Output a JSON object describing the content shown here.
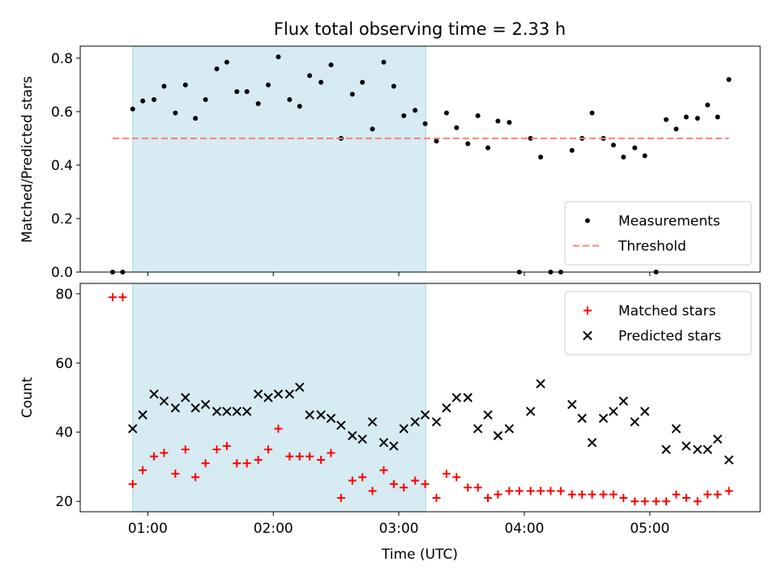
{
  "chart_data": {
    "title": "Flux total observing time = 2.33 h",
    "x_axis": {
      "label": "Time (UTC)",
      "unit": "hours UTC",
      "range": [
        0.462,
        5.879
      ],
      "ticks": [
        1,
        2,
        3,
        4,
        5
      ],
      "tick_labels": [
        "01:00",
        "02:00",
        "03:00",
        "04:00",
        "05:00"
      ]
    },
    "shaded_interval": {
      "start": 0.88,
      "end": 3.215,
      "color": "#add8e6"
    },
    "panels": [
      {
        "type": "scatter",
        "ylabel": "Matched/Predicted stars",
        "ylim": [
          0,
          0.845
        ],
        "yticks": [
          0.0,
          0.2,
          0.4,
          0.6,
          0.8
        ],
        "ytick_labels": [
          "0.0",
          "0.2",
          "0.4",
          "0.6",
          "0.8"
        ],
        "legend_position": "lower right",
        "series": [
          {
            "name": "Measurements",
            "marker": "dot",
            "color": "#000000",
            "x": [
              0.72,
              0.8,
              0.88,
              0.96,
              1.05,
              1.13,
              1.22,
              1.3,
              1.38,
              1.46,
              1.55,
              1.63,
              1.71,
              1.79,
              1.88,
              1.96,
              2.04,
              2.13,
              2.21,
              2.29,
              2.38,
              2.46,
              2.54,
              2.63,
              2.71,
              2.79,
              2.88,
              2.96,
              3.04,
              3.13,
              3.21,
              3.3,
              3.38,
              3.46,
              3.55,
              3.63,
              3.71,
              3.79,
              3.88,
              3.96,
              4.05,
              4.13,
              4.21,
              4.29,
              4.38,
              4.46,
              4.54,
              4.63,
              4.71,
              4.79,
              4.88,
              4.96,
              5.05,
              5.13,
              5.21,
              5.29,
              5.38,
              5.46,
              5.54,
              5.63
            ],
            "y": [
              0.0,
              0.0,
              0.61,
              0.64,
              0.645,
              0.695,
              0.595,
              0.7,
              0.575,
              0.645,
              0.76,
              0.785,
              0.675,
              0.675,
              0.63,
              0.7,
              0.805,
              0.645,
              0.62,
              0.735,
              0.71,
              0.775,
              0.5,
              0.665,
              0.71,
              0.535,
              0.785,
              0.695,
              0.585,
              0.605,
              0.555,
              0.49,
              0.595,
              0.54,
              0.48,
              0.585,
              0.465,
              0.565,
              0.56,
              0.0,
              0.5,
              0.43,
              0.0,
              0.0,
              0.455,
              0.5,
              0.595,
              0.5,
              0.475,
              0.43,
              0.465,
              0.435,
              0.0,
              0.57,
              0.535,
              0.58,
              0.575,
              0.625,
              0.58,
              0.72
            ]
          },
          {
            "name": "Threshold",
            "style": "dashed",
            "color": "#ff7f7f",
            "x": [
              0.72,
              5.63
            ],
            "y": [
              0.5,
              0.5
            ]
          }
        ]
      },
      {
        "type": "scatter",
        "ylabel": "Count",
        "ylim": [
          17,
          83
        ],
        "yticks": [
          20,
          40,
          60,
          80
        ],
        "ytick_labels": [
          "20",
          "40",
          "60",
          "80"
        ],
        "legend_position": "upper right",
        "series": [
          {
            "name": "Matched stars",
            "marker": "plus",
            "color": "#ff0000",
            "x": [
              0.72,
              0.8,
              0.88,
              0.96,
              1.05,
              1.13,
              1.22,
              1.3,
              1.38,
              1.46,
              1.55,
              1.63,
              1.71,
              1.79,
              1.88,
              1.96,
              2.04,
              2.13,
              2.21,
              2.29,
              2.38,
              2.46,
              2.54,
              2.63,
              2.71,
              2.79,
              2.88,
              2.96,
              3.04,
              3.13,
              3.21,
              3.3,
              3.38,
              3.46,
              3.55,
              3.63,
              3.71,
              3.79,
              3.88,
              3.96,
              4.05,
              4.13,
              4.21,
              4.29,
              4.38,
              4.46,
              4.54,
              4.63,
              4.71,
              4.79,
              4.88,
              4.96,
              5.05,
              5.13,
              5.21,
              5.29,
              5.38,
              5.46,
              5.54,
              5.63
            ],
            "y": [
              79,
              79,
              25,
              29,
              33,
              34,
              28,
              35,
              27,
              31,
              35,
              36,
              31,
              31,
              32,
              35,
              41,
              33,
              33,
              33,
              32,
              34,
              21,
              26,
              27,
              23,
              29,
              25,
              24,
              26,
              25,
              21,
              28,
              27,
              24,
              24,
              21,
              22,
              23,
              23,
              23,
              23,
              23,
              23,
              22,
              22,
              22,
              22,
              22,
              21,
              20,
              20,
              20,
              20,
              22,
              21,
              20,
              22,
              22,
              23
            ]
          },
          {
            "name": "Predicted stars",
            "marker": "x",
            "color": "#000000",
            "x": [
              0.88,
              0.96,
              1.05,
              1.13,
              1.22,
              1.3,
              1.38,
              1.46,
              1.55,
              1.63,
              1.71,
              1.79,
              1.88,
              1.96,
              2.04,
              2.13,
              2.21,
              2.29,
              2.38,
              2.46,
              2.54,
              2.63,
              2.71,
              2.79,
              2.88,
              2.96,
              3.04,
              3.13,
              3.21,
              3.3,
              3.38,
              3.46,
              3.55,
              3.63,
              3.71,
              3.79,
              3.88,
              4.05,
              4.13,
              4.38,
              4.46,
              4.54,
              4.63,
              4.71,
              4.79,
              4.88,
              4.96,
              5.13,
              5.21,
              5.29,
              5.38,
              5.46,
              5.54,
              5.63
            ],
            "y": [
              41,
              45,
              51,
              49,
              47,
              50,
              47,
              48,
              46,
              46,
              46,
              46,
              51,
              50,
              51,
              51,
              53,
              45,
              45,
              44,
              42,
              39,
              38,
              43,
              37,
              36,
              41,
              43,
              45,
              43,
              47,
              50,
              50,
              41,
              45,
              39,
              41,
              46,
              54,
              48,
              44,
              37,
              44,
              46,
              49,
              43,
              46,
              35,
              41,
              36,
              35,
              35,
              38,
              32
            ]
          }
        ]
      }
    ]
  }
}
